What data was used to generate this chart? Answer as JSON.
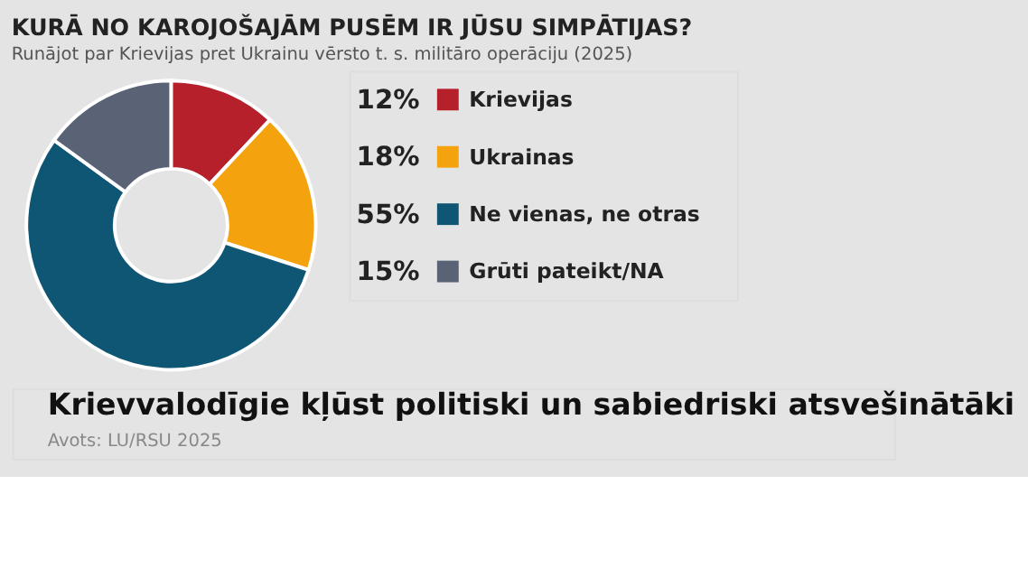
{
  "chart_data": {
    "type": "donut",
    "title": "KURĀ NO KAROJOŠAJĀM PUSĒM IR JŪSU SIMPĀTIJAS?",
    "subtitle": "Runājot par Krievijas pret Ukrainu vērsto t. s. militāro operāciju (2025)",
    "categories": [
      "Krievijas",
      "Ukrainas",
      "Ne vienas, ne otras",
      "Grūti pateikt/NA"
    ],
    "values": [
      12,
      18,
      55,
      15
    ],
    "value_labels": [
      "12%",
      "18%",
      "55%",
      "15%"
    ],
    "colors": [
      "#b5202a",
      "#f5a20f",
      "#0f5674",
      "#5a6275"
    ],
    "legend": "right",
    "annotations": [
      "Krievvalodīgie kļūst politiski un sabiedriski atsvešinātāki",
      "Avots: LU/RSU 2025"
    ]
  }
}
